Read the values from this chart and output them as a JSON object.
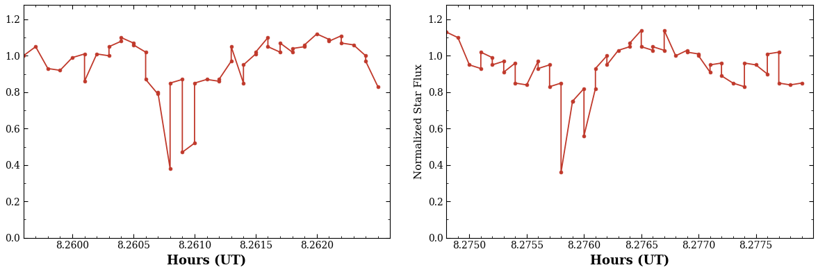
{
  "line_color": "#C0392B",
  "marker_color": "#C0392B",
  "background_color": "#ffffff",
  "ylabel": "Normalized Star Flux",
  "xlabel": "Hours (UT)",
  "ylim": [
    0.0,
    1.28
  ],
  "yticks": [
    0.0,
    0.2,
    0.4,
    0.6,
    0.8,
    1.0,
    1.2
  ],
  "plot1": {
    "xlim": [
      8.2596,
      8.2626
    ],
    "xticks": [
      8.26,
      8.2605,
      8.261,
      8.2615,
      8.262
    ],
    "x": [
      8.2596,
      8.2597,
      8.2598,
      8.2599,
      8.26,
      8.2601,
      8.2601,
      8.2602,
      8.2603,
      8.2603,
      8.2604,
      8.2604,
      8.2605,
      8.2605,
      8.2606,
      8.2606,
      8.2607,
      8.2607,
      8.2608,
      8.2608,
      8.2609,
      8.2609,
      8.261,
      8.261,
      8.2611,
      8.2612,
      8.2612,
      8.2613,
      8.2613,
      8.2614,
      8.2614,
      8.2615,
      8.2615,
      8.2616,
      8.2616,
      8.2617,
      8.2617,
      8.2618,
      8.2618,
      8.2619,
      8.2619,
      8.262,
      8.2621,
      8.2621,
      8.2622,
      8.2622,
      8.2623,
      8.2624,
      8.2624,
      8.2625
    ],
    "y": [
      1.0,
      1.05,
      0.93,
      0.92,
      0.99,
      1.01,
      0.86,
      1.01,
      1.0,
      1.05,
      1.08,
      1.1,
      1.07,
      1.06,
      1.02,
      0.87,
      0.79,
      0.8,
      0.38,
      0.85,
      0.87,
      0.47,
      0.52,
      0.85,
      0.87,
      0.86,
      0.87,
      0.97,
      1.05,
      0.85,
      0.95,
      1.01,
      1.02,
      1.1,
      1.05,
      1.02,
      1.07,
      1.02,
      1.04,
      1.05,
      1.06,
      1.12,
      1.09,
      1.08,
      1.11,
      1.07,
      1.06,
      1.0,
      0.97,
      0.83
    ]
  },
  "plot2": {
    "xlim": [
      8.2748,
      8.278
    ],
    "xticks": [
      8.275,
      8.2755,
      8.276,
      8.2765,
      8.277,
      8.2775
    ],
    "x": [
      8.2748,
      8.2749,
      8.275,
      8.2751,
      8.2751,
      8.2752,
      8.2752,
      8.2753,
      8.2753,
      8.2754,
      8.2754,
      8.2755,
      8.2756,
      8.2756,
      8.2757,
      8.2757,
      8.2758,
      8.2758,
      8.2759,
      8.2759,
      8.276,
      8.276,
      8.2761,
      8.2761,
      8.2762,
      8.2762,
      8.2763,
      8.2764,
      8.2764,
      8.2765,
      8.2765,
      8.2766,
      8.2766,
      8.2767,
      8.2767,
      8.2768,
      8.2769,
      8.2769,
      8.277,
      8.277,
      8.2771,
      8.2771,
      8.2772,
      8.2772,
      8.2773,
      8.2774,
      8.2774,
      8.2775,
      8.2776,
      8.2776,
      8.2777,
      8.2777,
      8.2778,
      8.2779
    ],
    "y": [
      1.13,
      1.1,
      0.95,
      0.93,
      1.02,
      0.99,
      0.95,
      0.97,
      0.91,
      0.96,
      0.85,
      0.84,
      0.97,
      0.93,
      0.95,
      0.83,
      0.85,
      0.36,
      0.75,
      0.75,
      0.82,
      0.56,
      0.82,
      0.93,
      1.0,
      0.95,
      1.03,
      1.05,
      1.07,
      1.14,
      1.05,
      1.03,
      1.05,
      1.03,
      1.14,
      1.0,
      1.03,
      1.02,
      1.01,
      1.0,
      0.91,
      0.95,
      0.96,
      0.89,
      0.85,
      0.83,
      0.96,
      0.95,
      0.9,
      1.01,
      1.02,
      0.85,
      0.84,
      0.85
    ]
  }
}
